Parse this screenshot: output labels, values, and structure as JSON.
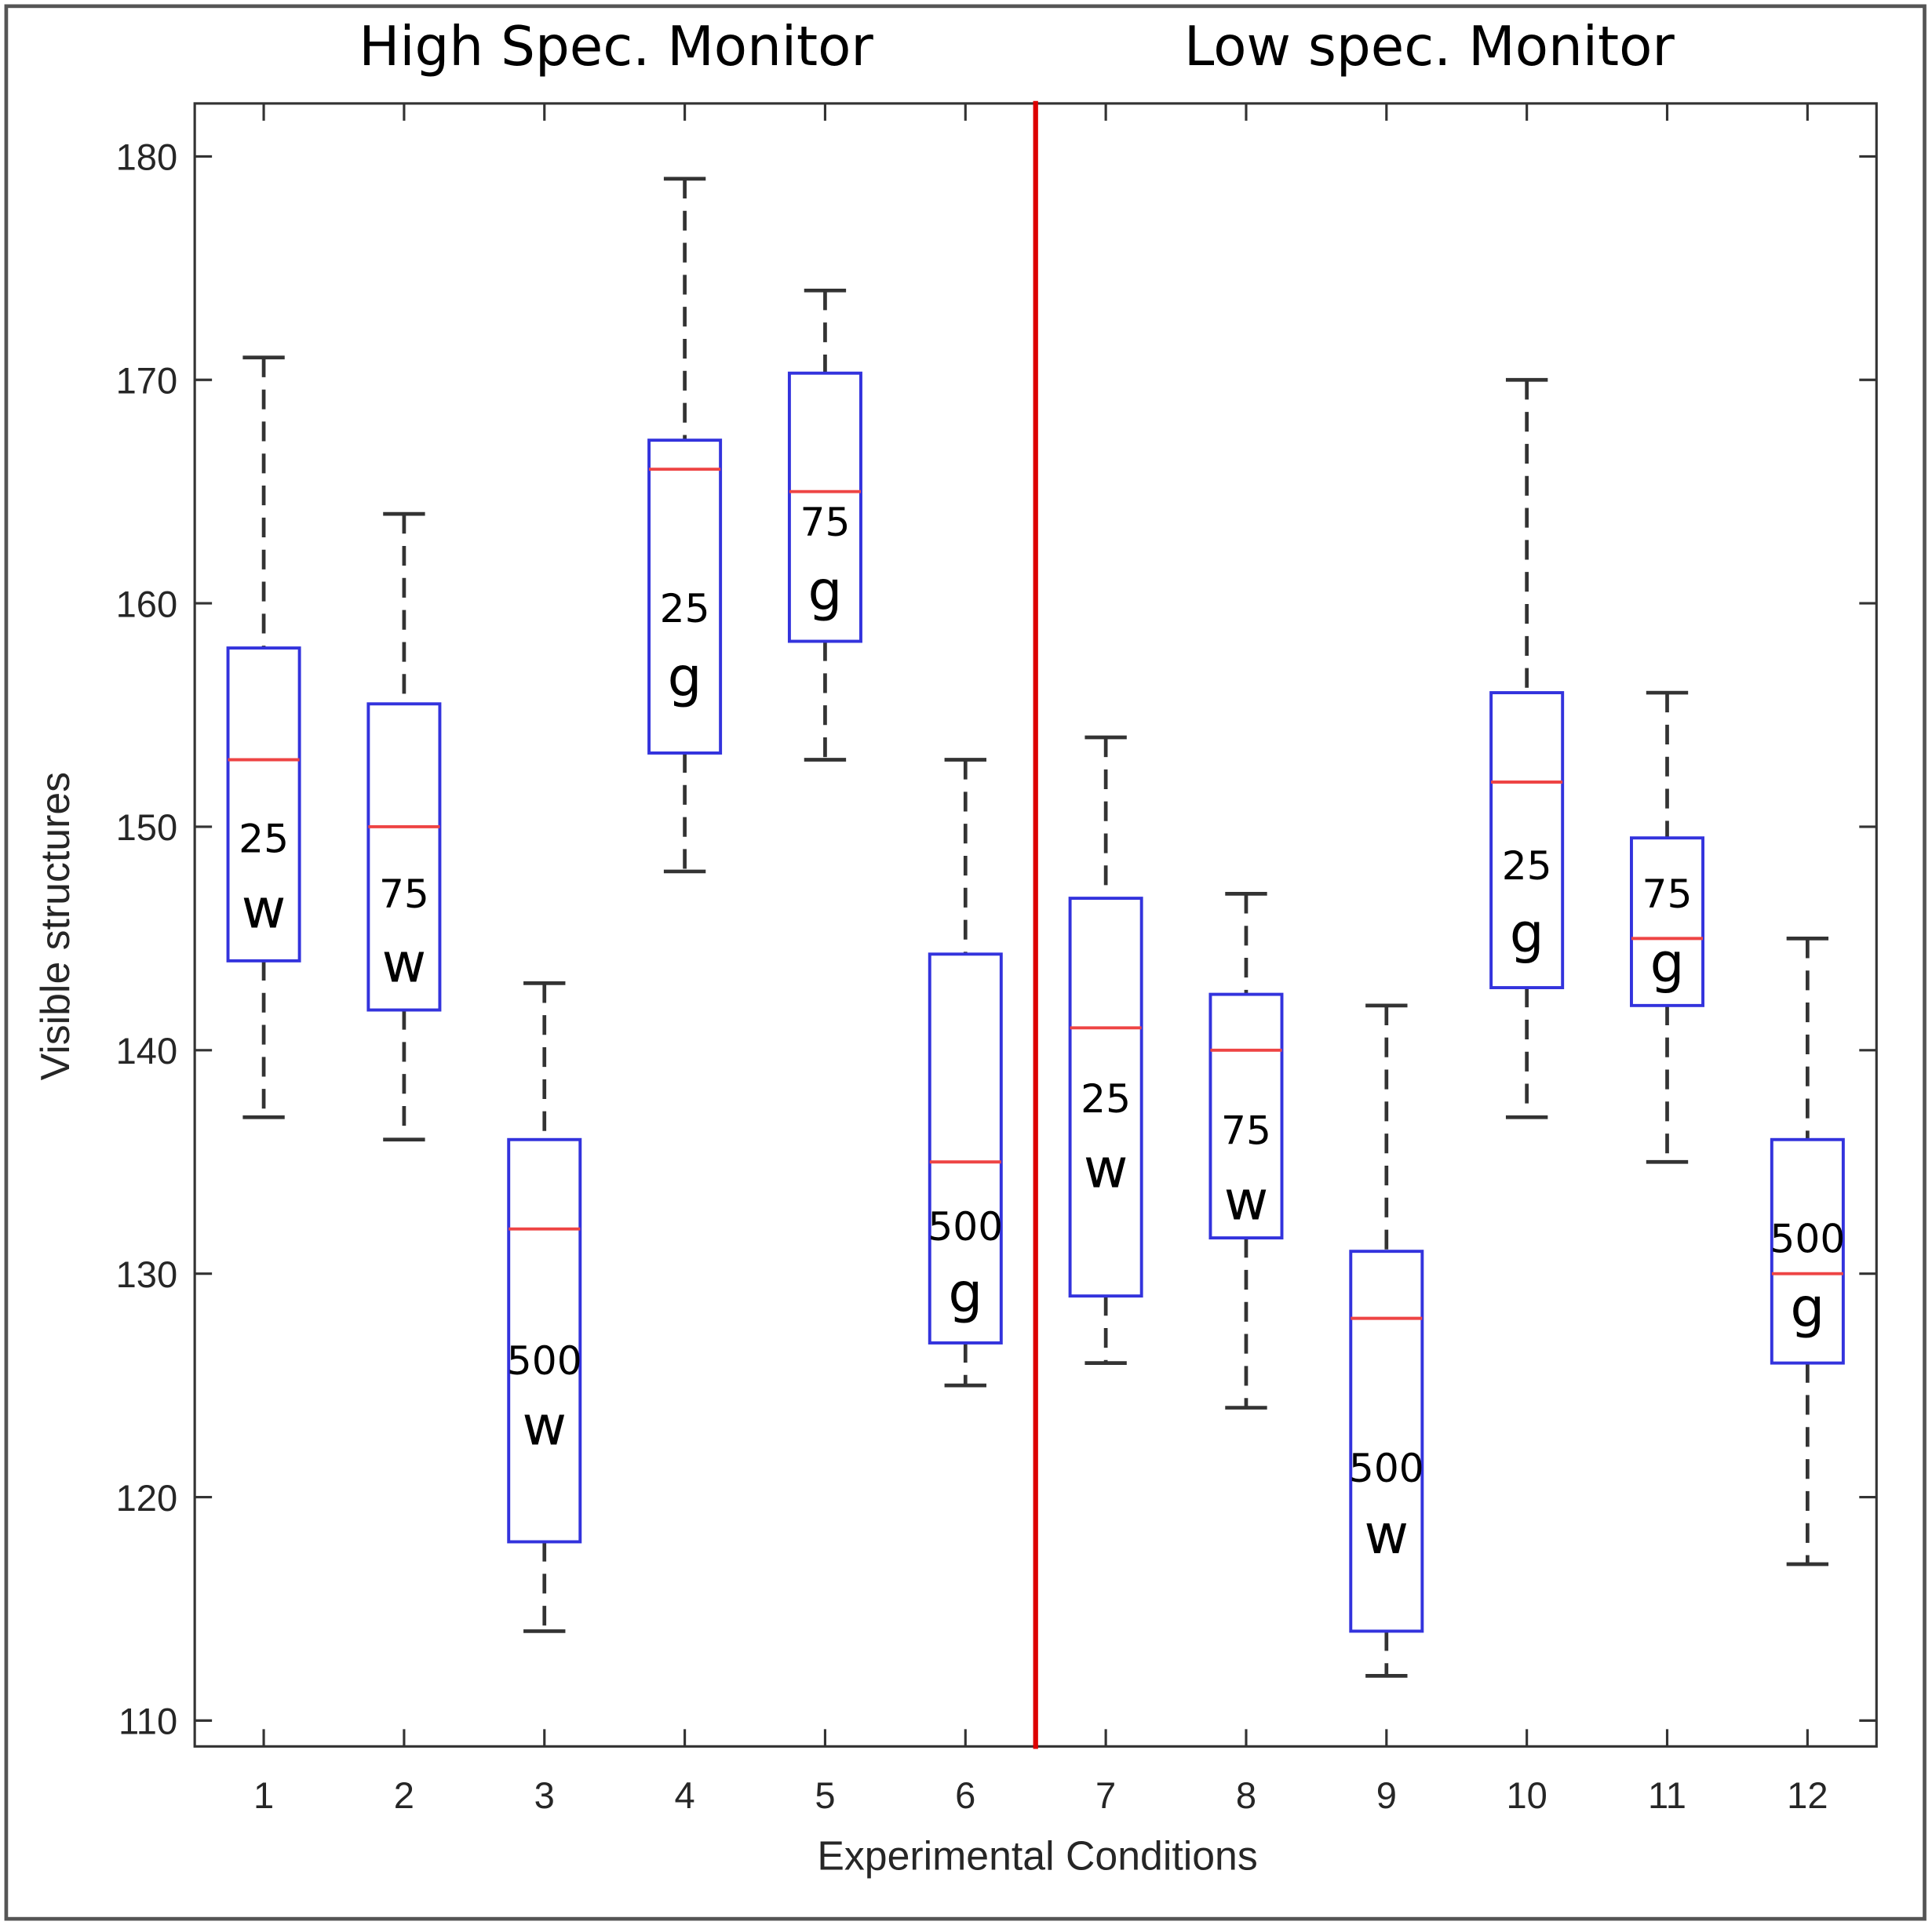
{
  "chart_data": {
    "type": "box",
    "panel_titles": [
      "High Spec. Monitor",
      "Low spec. Monitor"
    ],
    "xlabel": "Experimental Conditions",
    "ylabel": "Visible structures",
    "ylim": [
      109,
      182
    ],
    "yticks": [
      110,
      120,
      130,
      140,
      150,
      160,
      170,
      180
    ],
    "categories": [
      "1",
      "2",
      "3",
      "4",
      "5",
      "6",
      "7",
      "8",
      "9",
      "10",
      "11",
      "12"
    ],
    "divider_between": [
      6,
      7
    ],
    "grid": false,
    "boxes": [
      {
        "label_num": "25",
        "label_letter": "w",
        "whisker_low": 137,
        "q1": 144,
        "median": 153,
        "q3": 158,
        "whisker_high": 171
      },
      {
        "label_num": "75",
        "label_letter": "w",
        "whisker_low": 136,
        "q1": 141.8,
        "median": 150,
        "q3": 155.5,
        "whisker_high": 164
      },
      {
        "label_num": "500",
        "label_letter": "w",
        "whisker_low": 114,
        "q1": 118,
        "median": 132,
        "q3": 136,
        "whisker_high": 143
      },
      {
        "label_num": "25",
        "label_letter": "g",
        "whisker_low": 148,
        "q1": 153.3,
        "median": 166,
        "q3": 167.3,
        "whisker_high": 179
      },
      {
        "label_num": "75",
        "label_letter": "g",
        "whisker_low": 153,
        "q1": 158.3,
        "median": 165,
        "q3": 170.3,
        "whisker_high": 174
      },
      {
        "label_num": "500",
        "label_letter": "g",
        "whisker_low": 125,
        "q1": 126.9,
        "median": 135,
        "q3": 144.3,
        "whisker_high": 153
      },
      {
        "label_num": "25",
        "label_letter": "w",
        "whisker_low": 126,
        "q1": 129,
        "median": 141,
        "q3": 146.8,
        "whisker_high": 154
      },
      {
        "label_num": "75",
        "label_letter": "w",
        "whisker_low": 124,
        "q1": 131.6,
        "median": 140,
        "q3": 142.5,
        "whisker_high": 147
      },
      {
        "label_num": "500",
        "label_letter": "w",
        "whisker_low": 112,
        "q1": 114,
        "median": 128,
        "q3": 131,
        "whisker_high": 142
      },
      {
        "label_num": "25",
        "label_letter": "g",
        "whisker_low": 137,
        "q1": 142.8,
        "median": 152,
        "q3": 156,
        "whisker_high": 170
      },
      {
        "label_num": "75",
        "label_letter": "g",
        "whisker_low": 135,
        "q1": 142,
        "median": 145,
        "q3": 149.5,
        "whisker_high": 156
      },
      {
        "label_num": "500",
        "label_letter": "g",
        "whisker_low": 117,
        "q1": 126,
        "median": 130,
        "q3": 136,
        "whisker_high": 145
      }
    ],
    "colors": {
      "box": "#3333dd",
      "median": "#ee4444",
      "whisker": "#333333",
      "divider": "#dd0000"
    }
  }
}
